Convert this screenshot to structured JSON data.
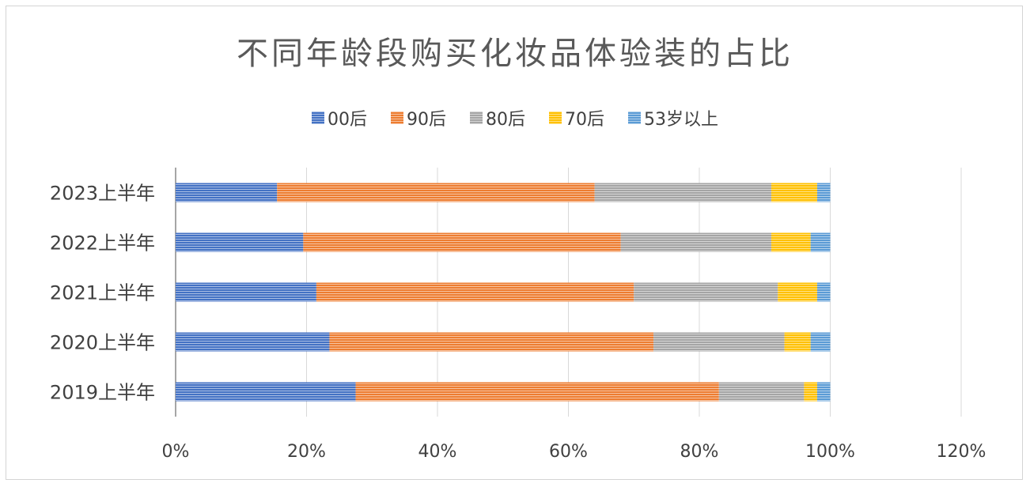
{
  "chart_data": {
    "type": "bar",
    "orientation": "horizontal",
    "stacked": true,
    "title": "不同年龄段购买化妆品体验装的占比",
    "categories": [
      "2023上半年",
      "2022上半年",
      "2021上半年",
      "2020上半年",
      "2019上半年"
    ],
    "series": [
      {
        "name": "00后",
        "color": "#4472C4",
        "values": [
          0.155,
          0.195,
          0.215,
          0.235,
          0.275
        ]
      },
      {
        "name": "90后",
        "color": "#ED7D31",
        "values": [
          0.485,
          0.485,
          0.485,
          0.495,
          0.555
        ]
      },
      {
        "name": "80后",
        "color": "#A5A5A5",
        "values": [
          0.27,
          0.23,
          0.22,
          0.2,
          0.13
        ]
      },
      {
        "name": "70后",
        "color": "#FFC000",
        "values": [
          0.07,
          0.06,
          0.06,
          0.04,
          0.02
        ]
      },
      {
        "name": "53岁以上",
        "color": "#5B9BD5",
        "values": [
          0.02,
          0.03,
          0.02,
          0.03,
          0.02
        ]
      }
    ],
    "xlim": [
      0,
      1.2
    ],
    "xticks": [
      "0%",
      "20%",
      "40%",
      "60%",
      "80%",
      "100%",
      "120%"
    ],
    "grid": true,
    "legend_position": "top"
  }
}
